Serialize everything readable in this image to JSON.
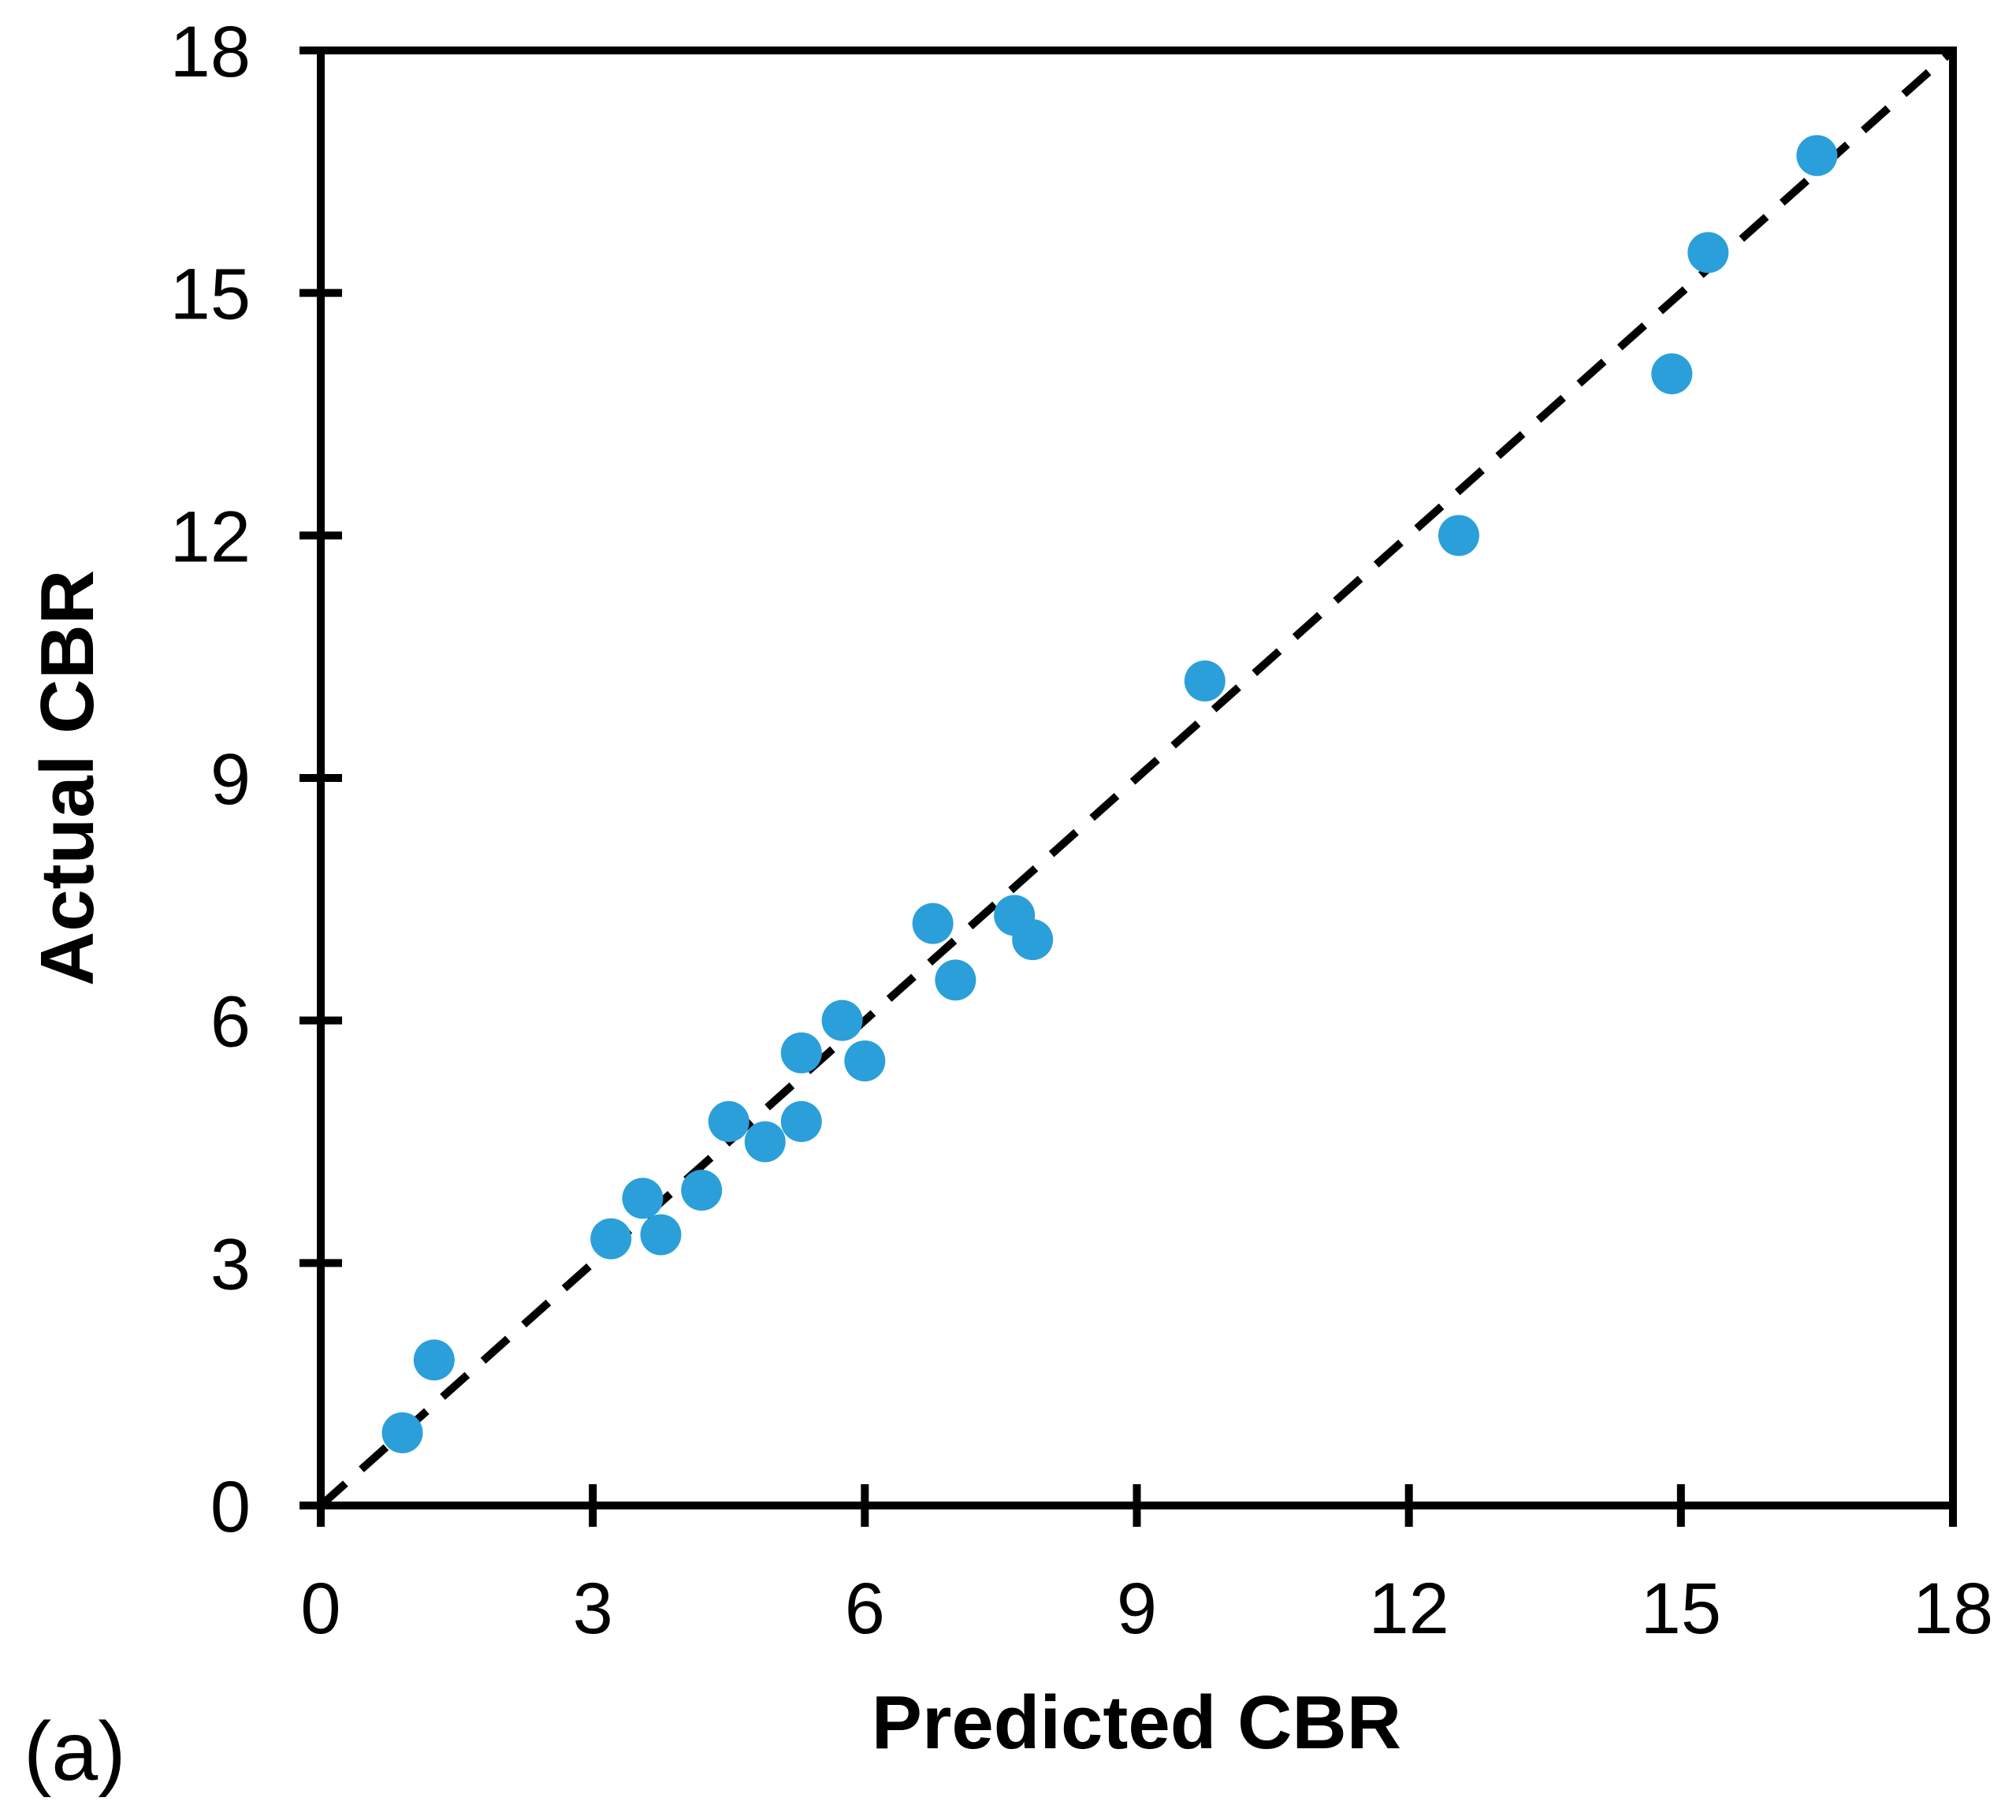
{
  "panel_label": "(a)",
  "chart_data": {
    "type": "scatter",
    "title": "",
    "xlabel": "Predicted CBR",
    "ylabel": "Actual CBR",
    "xlim": [
      0,
      18
    ],
    "ylim": [
      0,
      18
    ],
    "xticks": [
      0,
      3,
      6,
      9,
      12,
      15,
      18
    ],
    "yticks": [
      0,
      3,
      6,
      9,
      12,
      15,
      18
    ],
    "grid": false,
    "legend": "none",
    "colors": {
      "marker": "#2B9FD9",
      "axis": "#000000",
      "identity_line": "#000000",
      "background": "#FFFFFF"
    },
    "identity_line": {
      "style": "dashed",
      "from": [
        0,
        0
      ],
      "to": [
        18,
        18
      ]
    },
    "series": [
      {
        "name": "predicted-vs-actual",
        "points": [
          [
            0.9,
            0.9
          ],
          [
            1.25,
            1.8
          ],
          [
            3.2,
            3.3
          ],
          [
            3.55,
            3.8
          ],
          [
            3.75,
            3.35
          ],
          [
            4.2,
            3.9
          ],
          [
            4.5,
            4.75
          ],
          [
            4.9,
            4.5
          ],
          [
            5.3,
            4.75
          ],
          [
            5.3,
            5.6
          ],
          [
            5.75,
            6.0
          ],
          [
            6.0,
            5.5
          ],
          [
            6.75,
            7.2
          ],
          [
            7.0,
            6.5
          ],
          [
            7.65,
            7.3
          ],
          [
            7.85,
            7.0
          ],
          [
            9.75,
            10.2
          ],
          [
            12.55,
            12.0
          ],
          [
            14.9,
            14.0
          ],
          [
            15.3,
            15.5
          ],
          [
            16.5,
            16.7
          ]
        ]
      }
    ]
  }
}
